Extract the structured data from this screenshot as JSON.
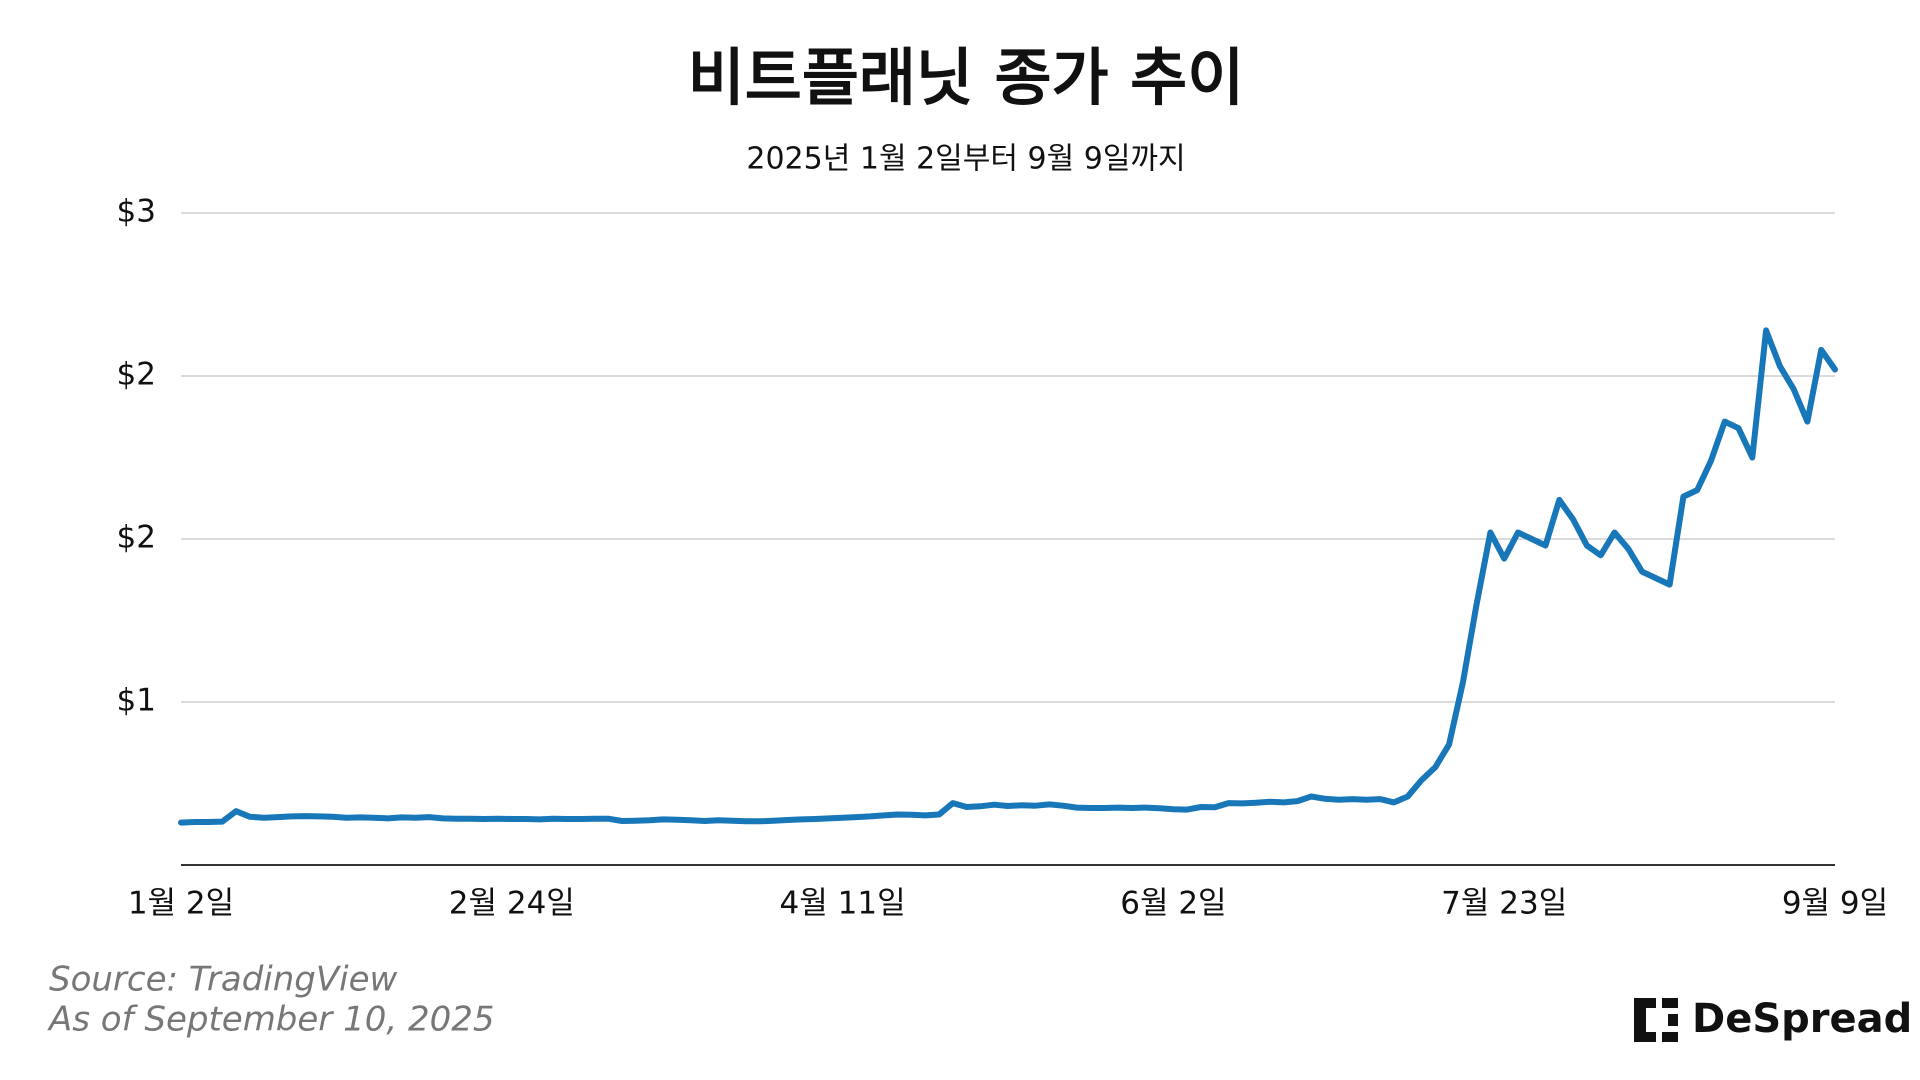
{
  "chart_data": {
    "type": "line",
    "title": "비트플래닛 종가 추이",
    "subtitle": "2025년 1월 2일부터 9월 9일까지",
    "annotations": [
      "Source: TradingView",
      "As of September 10, 2025"
    ],
    "categories": [
      "1월 2일",
      null,
      null,
      null,
      null,
      null,
      null,
      null,
      null,
      null,
      null,
      null,
      null,
      null,
      null,
      null,
      null,
      null,
      null,
      null,
      null,
      null,
      null,
      null,
      "2월 24일",
      null,
      null,
      null,
      null,
      null,
      null,
      null,
      null,
      null,
      null,
      null,
      null,
      null,
      null,
      null,
      null,
      null,
      null,
      null,
      null,
      null,
      null,
      null,
      "4월 11일",
      null,
      null,
      null,
      null,
      null,
      null,
      null,
      null,
      null,
      null,
      null,
      null,
      null,
      null,
      null,
      null,
      null,
      null,
      null,
      null,
      null,
      null,
      null,
      "6월 2일",
      null,
      null,
      null,
      null,
      null,
      null,
      null,
      null,
      null,
      null,
      null,
      null,
      null,
      null,
      null,
      null,
      null,
      null,
      null,
      null,
      null,
      null,
      null,
      "7월 23일",
      null,
      null,
      null,
      null,
      null,
      null,
      null,
      null,
      null,
      null,
      null,
      null,
      null,
      null,
      null,
      null,
      null,
      null,
      null,
      null,
      null,
      null,
      null,
      "9월 9일"
    ],
    "series": [
      {
        "name": "비트플래닛",
        "color": "#1877b8",
        "values": [
          0.63,
          0.632,
          0.632,
          0.633,
          0.665,
          0.648,
          0.645,
          0.647,
          0.649,
          0.65,
          0.649,
          0.648,
          0.645,
          0.646,
          0.645,
          0.643,
          0.646,
          0.645,
          0.647,
          0.643,
          0.642,
          0.642,
          0.641,
          0.642,
          0.641,
          0.641,
          0.64,
          0.642,
          0.641,
          0.641,
          0.642,
          0.642,
          0.635,
          0.636,
          0.637,
          0.64,
          0.639,
          0.637,
          0.635,
          0.637,
          0.636,
          0.634,
          0.634,
          0.636,
          0.638,
          0.64,
          0.641,
          0.643,
          0.645,
          0.647,
          0.649,
          0.652,
          0.655,
          0.654,
          0.652,
          0.655,
          0.69,
          0.678,
          0.68,
          0.685,
          0.681,
          0.683,
          0.682,
          0.686,
          0.682,
          0.676,
          0.675,
          0.675,
          0.676,
          0.675,
          0.676,
          0.674,
          0.671,
          0.67,
          0.678,
          0.677,
          0.69,
          0.689,
          0.691,
          0.694,
          0.692,
          0.696,
          0.71,
          0.703,
          0.7,
          0.702,
          0.7,
          0.702,
          0.692,
          0.71,
          0.76,
          0.8,
          0.87,
          1.06,
          1.3,
          1.52,
          1.44,
          1.52,
          1.5,
          1.48,
          1.62,
          1.56,
          1.48,
          1.45,
          1.52,
          1.47,
          1.4,
          1.38,
          1.36,
          1.63,
          1.65,
          1.74,
          1.86,
          1.84,
          1.75,
          2.14,
          2.03,
          1.96,
          1.86,
          2.08,
          2.02
        ]
      }
    ],
    "ylim": [
      0.5,
      2.5
    ],
    "yticks": [
      {
        "value": 1,
        "label": "$1"
      },
      {
        "value": 1.5,
        "label": "$2"
      },
      {
        "value": 2,
        "label": "$2"
      },
      {
        "value": 2.5,
        "label": "$3"
      }
    ],
    "grid": true
  },
  "logo": "DeSpread"
}
